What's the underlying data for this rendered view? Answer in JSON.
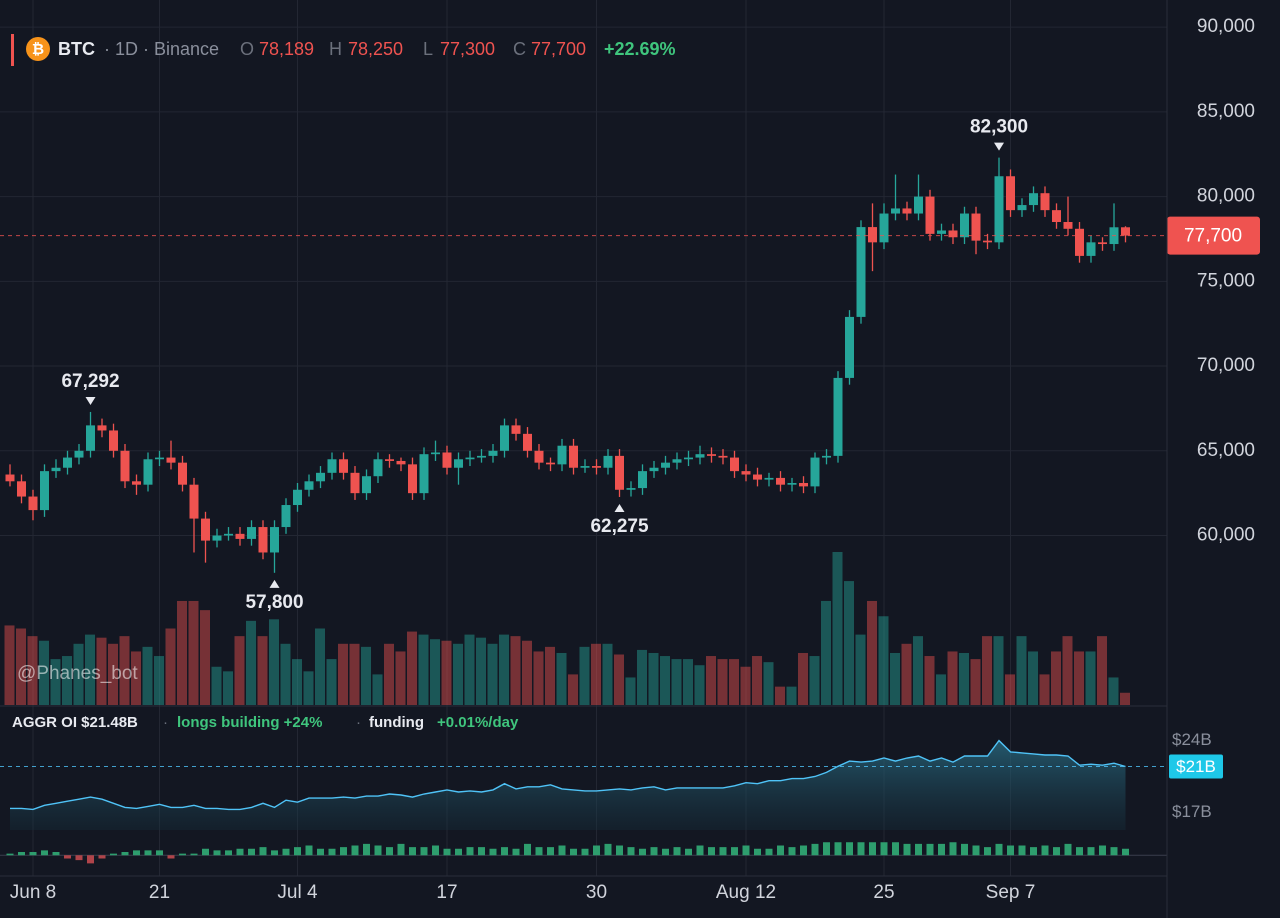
{
  "header": {
    "icon_symbol": "₿",
    "symbol": "BTC",
    "meta": "· 1D · Binance",
    "o_key": "O",
    "o_value": "78,189",
    "h_key": "H",
    "h_value": "78,250",
    "l_key": "L",
    "l_value": "77,300",
    "c_key": "C",
    "c_value": "77,700",
    "change": "+22.69%",
    "watermark": "@Phanes_bot",
    "oi_title": "AGGR OI $21.48B",
    "sep1": "·",
    "oi_note": "longs building +24%",
    "sep2": "·",
    "funding_key": "funding",
    "funding_value": "+0.01%/day"
  },
  "chart_data": [
    {
      "type": "candlestick",
      "ylim": [
        50000,
        91600
      ],
      "yticks": [
        {
          "value": 60000,
          "label": "60,000"
        },
        {
          "value": 65000,
          "label": "65,000"
        },
        {
          "value": 70000,
          "label": "70,000"
        },
        {
          "value": 75000,
          "label": "75,000"
        },
        {
          "value": 80000,
          "label": "80,000"
        },
        {
          "value": 85000,
          "label": "85,000"
        },
        {
          "value": 90000,
          "label": "90,000"
        }
      ],
      "xticks": [
        {
          "value": 2,
          "label": "Jun 8"
        },
        {
          "value": 13,
          "label": "21"
        },
        {
          "value": 25,
          "label": "Jul 4"
        },
        {
          "value": 38,
          "label": "17"
        },
        {
          "value": 51,
          "label": "30"
        },
        {
          "value": 64,
          "label": "Aug 12"
        },
        {
          "value": 76,
          "label": "25"
        },
        {
          "value": 87,
          "label": "Sep 7"
        }
      ],
      "grid": true,
      "up_color": "#26a69a",
      "down_color": "#ef5350",
      "last_price": {
        "value": 77700,
        "label": "77,700"
      },
      "annotations": [
        {
          "index": 7,
          "value": 67292,
          "label": "67,292",
          "side": "high"
        },
        {
          "index": 23,
          "value": 57800,
          "label": "57,800",
          "side": "low"
        },
        {
          "index": 53,
          "value": 62275,
          "label": "62,275",
          "side": "low"
        },
        {
          "index": 86,
          "value": 82300,
          "label": "82,300",
          "side": "high"
        }
      ],
      "ohlc": [
        [
          63600,
          64200,
          62900,
          63200
        ],
        [
          63200,
          63600,
          61900,
          62300
        ],
        [
          62300,
          62700,
          60900,
          61500
        ],
        [
          61500,
          64200,
          61100,
          63800
        ],
        [
          63800,
          64500,
          63400,
          64000
        ],
        [
          64000,
          65000,
          63600,
          64600
        ],
        [
          64600,
          65400,
          64200,
          65000
        ],
        [
          65000,
          67292,
          64600,
          66500
        ],
        [
          66500,
          66900,
          65800,
          66200
        ],
        [
          66200,
          66600,
          64600,
          65000
        ],
        [
          65000,
          65400,
          62800,
          63200
        ],
        [
          63200,
          63600,
          62400,
          63000
        ],
        [
          63000,
          64900,
          62600,
          64500
        ],
        [
          64500,
          65000,
          64100,
          64600
        ],
        [
          64600,
          65600,
          63900,
          64300
        ],
        [
          64300,
          64700,
          62600,
          63000
        ],
        [
          63000,
          63400,
          59000,
          61000
        ],
        [
          61000,
          61400,
          58400,
          59700
        ],
        [
          59700,
          60400,
          59300,
          60000
        ],
        [
          60000,
          60500,
          59700,
          60100
        ],
        [
          60100,
          60500,
          59400,
          59800
        ],
        [
          59800,
          60900,
          59400,
          60500
        ],
        [
          60500,
          60900,
          58600,
          59000
        ],
        [
          59000,
          60900,
          57800,
          60500
        ],
        [
          60500,
          62200,
          60100,
          61800
        ],
        [
          61800,
          63100,
          61400,
          62700
        ],
        [
          62700,
          63600,
          62300,
          63200
        ],
        [
          63200,
          64100,
          62800,
          63700
        ],
        [
          63700,
          64900,
          63300,
          64500
        ],
        [
          64500,
          64900,
          63300,
          63700
        ],
        [
          63700,
          64100,
          62100,
          62500
        ],
        [
          62500,
          63900,
          62100,
          63500
        ],
        [
          63500,
          64900,
          63100,
          64500
        ],
        [
          64500,
          64800,
          64000,
          64400
        ],
        [
          64400,
          64600,
          63800,
          64200
        ],
        [
          64200,
          64600,
          62100,
          62500
        ],
        [
          62500,
          65200,
          62100,
          64800
        ],
        [
          64800,
          65600,
          64400,
          64900
        ],
        [
          64900,
          65300,
          63600,
          64000
        ],
        [
          64000,
          64900,
          63000,
          64500
        ],
        [
          64500,
          65000,
          64100,
          64600
        ],
        [
          64600,
          65100,
          64300,
          64700
        ],
        [
          64700,
          65400,
          64300,
          65000
        ],
        [
          65000,
          66900,
          64600,
          66500
        ],
        [
          66500,
          66900,
          65600,
          66000
        ],
        [
          66000,
          66400,
          64600,
          65000
        ],
        [
          65000,
          65400,
          63900,
          64300
        ],
        [
          64300,
          64600,
          63800,
          64200
        ],
        [
          64200,
          65700,
          63800,
          65300
        ],
        [
          65300,
          65700,
          63600,
          64000
        ],
        [
          64000,
          64500,
          63700,
          64100
        ],
        [
          64100,
          64500,
          63600,
          64000
        ],
        [
          64000,
          65100,
          63600,
          64700
        ],
        [
          64700,
          65100,
          62275,
          62700
        ],
        [
          62700,
          63200,
          62300,
          62800
        ],
        [
          62800,
          64200,
          62400,
          63800
        ],
        [
          63800,
          64400,
          63400,
          64000
        ],
        [
          64000,
          64700,
          63600,
          64300
        ],
        [
          64300,
          64900,
          63900,
          64500
        ],
        [
          64500,
          65000,
          64100,
          64600
        ],
        [
          64600,
          65300,
          64200,
          64800
        ],
        [
          64800,
          65200,
          64300,
          64700
        ],
        [
          64700,
          65100,
          64200,
          64600
        ],
        [
          64600,
          65000,
          63400,
          63800
        ],
        [
          63800,
          64200,
          63200,
          63600
        ],
        [
          63600,
          64000,
          62900,
          63300
        ],
        [
          63300,
          63700,
          62900,
          63400
        ],
        [
          63400,
          63800,
          62600,
          63000
        ],
        [
          63000,
          63400,
          62600,
          63100
        ],
        [
          63100,
          63500,
          62500,
          62900
        ],
        [
          62900,
          64900,
          62500,
          64600
        ],
        [
          64600,
          65100,
          64200,
          64700
        ],
        [
          64700,
          69700,
          64300,
          69300
        ],
        [
          69300,
          73300,
          68900,
          72900
        ],
        [
          72900,
          78600,
          72500,
          78200
        ],
        [
          78200,
          79600,
          75600,
          77300
        ],
        [
          77300,
          79600,
          76900,
          79000
        ],
        [
          79000,
          81300,
          78600,
          79300
        ],
        [
          79300,
          79700,
          78600,
          79000
        ],
        [
          79000,
          81300,
          78600,
          80000
        ],
        [
          80000,
          80400,
          77400,
          77800
        ],
        [
          77800,
          78400,
          77400,
          78000
        ],
        [
          78000,
          78400,
          77200,
          77600
        ],
        [
          77600,
          79400,
          77200,
          79000
        ],
        [
          79000,
          79400,
          76600,
          77400
        ],
        [
          77400,
          77800,
          76900,
          77300
        ],
        [
          77300,
          82300,
          76900,
          81200
        ],
        [
          81200,
          81600,
          78800,
          79200
        ],
        [
          79200,
          79900,
          78800,
          79500
        ],
        [
          79500,
          80600,
          79100,
          80200
        ],
        [
          80200,
          80600,
          78800,
          79200
        ],
        [
          79200,
          79600,
          78100,
          78500
        ],
        [
          78500,
          80000,
          77700,
          78100
        ],
        [
          78100,
          78500,
          76100,
          76500
        ],
        [
          76500,
          77700,
          76100,
          77300
        ],
        [
          77300,
          77600,
          76800,
          77200
        ],
        [
          77200,
          79600,
          76800,
          78189
        ],
        [
          78189,
          78250,
          77300,
          77700
        ]
      ],
      "volume_lim": [
        0,
        100
      ],
      "volume": [
        52,
        50,
        45,
        42,
        30,
        32,
        40,
        46,
        44,
        40,
        45,
        35,
        38,
        32,
        50,
        68,
        68,
        62,
        25,
        22,
        45,
        55,
        45,
        56,
        40,
        30,
        22,
        50,
        30,
        40,
        40,
        38,
        20,
        40,
        35,
        48,
        46,
        43,
        42,
        40,
        46,
        44,
        40,
        46,
        45,
        42,
        35,
        38,
        34,
        20,
        38,
        40,
        40,
        33,
        18,
        36,
        34,
        32,
        30,
        30,
        26,
        32,
        30,
        30,
        25,
        32,
        28,
        12,
        12,
        34,
        32,
        68,
        100,
        81,
        46,
        68,
        58,
        34,
        40,
        45,
        32,
        20,
        35,
        34,
        30,
        45,
        45,
        20,
        45,
        35,
        20,
        35,
        45,
        35,
        35,
        45,
        18,
        8
      ]
    },
    {
      "type": "area",
      "ylim": [
        15.3,
        26
      ],
      "yticks": [
        {
          "value": 24,
          "label": "$24B"
        },
        {
          "value": 17,
          "label": "$17B"
        }
      ],
      "color": "#4fc3f7",
      "current": {
        "value": 21.48,
        "label": "$21B"
      },
      "values": [
        17.4,
        17.4,
        17.3,
        17.7,
        17.9,
        18.1,
        18.3,
        18.5,
        18.3,
        17.9,
        17.5,
        17.4,
        17.6,
        17.8,
        17.5,
        17.5,
        17.7,
        17.4,
        17.4,
        17.3,
        17.3,
        17.5,
        17.9,
        17.5,
        18.2,
        18.0,
        18.4,
        18.4,
        18.4,
        18.5,
        18.4,
        18.6,
        18.6,
        18.8,
        18.7,
        18.5,
        18.8,
        19.0,
        19.2,
        19.0,
        19.1,
        19.0,
        19.2,
        19.8,
        19.3,
        19.5,
        19.5,
        19.7,
        19.3,
        19.2,
        19.1,
        19.1,
        19.2,
        19.3,
        19.2,
        19.4,
        19.5,
        19.2,
        19.4,
        19.4,
        19.4,
        19.4,
        19.4,
        19.6,
        19.9,
        19.8,
        20.1,
        20.1,
        20.3,
        20.3,
        20.5,
        20.9,
        21.5,
        22.0,
        21.9,
        22.0,
        22.3,
        22.0,
        22.3,
        22.5,
        22.0,
        22.3,
        21.9,
        22.5,
        22.5,
        22.5,
        24.0,
        22.9,
        22.8,
        22.7,
        22.6,
        22.6,
        22.5,
        21.6,
        21.7,
        21.6,
        21.8,
        21.48
      ]
    },
    {
      "type": "bar",
      "ylim": [
        -6,
        10
      ],
      "pos_color": "#2e9e6e",
      "neg_color": "#b0444a",
      "values": [
        1,
        2,
        2,
        3,
        2,
        -2,
        -3,
        -5,
        -2,
        1,
        2,
        3,
        3,
        3,
        -2,
        1,
        1,
        4,
        3,
        3,
        4,
        4,
        5,
        3,
        4,
        5,
        6,
        4,
        4,
        5,
        6,
        7,
        6,
        5,
        7,
        5,
        5,
        6,
        4,
        4,
        5,
        5,
        4,
        5,
        4,
        7,
        5,
        5,
        6,
        4,
        4,
        6,
        7,
        6,
        5,
        4,
        5,
        4,
        5,
        4,
        6,
        5,
        5,
        5,
        6,
        4,
        4,
        6,
        5,
        6,
        7,
        8,
        8,
        8,
        8,
        8,
        8,
        8,
        7,
        7,
        7,
        7,
        8,
        7,
        6,
        5,
        7,
        6,
        6,
        5,
        6,
        5,
        7,
        5,
        5,
        6,
        5,
        4
      ]
    }
  ]
}
